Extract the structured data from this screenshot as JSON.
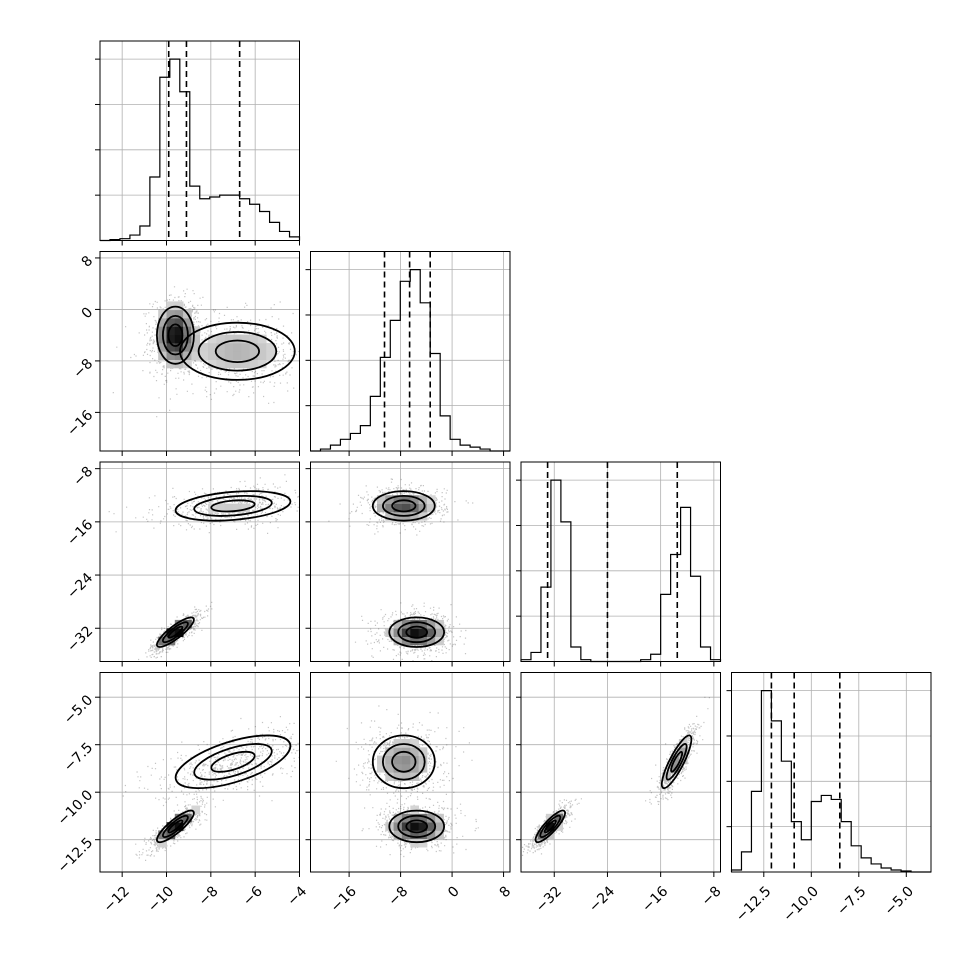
{
  "chart_data": {
    "type": "corner",
    "grid": true,
    "parameters": [
      {
        "range": [
          -13,
          -4
        ],
        "ticks": [
          -12,
          -10,
          -8,
          -6,
          -4
        ],
        "tick_labels": [
          "−12",
          "−10",
          "−8",
          "−6",
          "−4"
        ],
        "quantiles": [
          -9.9,
          -9.1,
          -6.7
        ]
      },
      {
        "range": [
          -22,
          9
        ],
        "ticks": [
          -16,
          -8,
          0,
          8
        ],
        "tick_labels": [
          "−16",
          "−8",
          "0",
          "8"
        ],
        "quantiles": [
          -10.5,
          -6.6,
          -3.4
        ]
      },
      {
        "range": [
          -37,
          -7
        ],
        "ticks": [
          -32,
          -24,
          -16,
          -8
        ],
        "tick_labels": [
          "−32",
          "−24",
          "−16",
          "−8"
        ],
        "quantiles": [
          -33.0,
          -24.0,
          -13.5
        ]
      },
      {
        "range": [
          -14.2,
          -3.7
        ],
        "ticks": [
          -12.5,
          -10.0,
          -7.5,
          -5.0
        ],
        "tick_labels": [
          "−12.5",
          "−10.0",
          "−7.5",
          "−5.0"
        ],
        "quantiles": [
          -12.1,
          -10.9,
          -8.5
        ]
      }
    ],
    "histograms": [
      {
        "bins": [
          -13.0,
          -12.55,
          -12.1,
          -11.65,
          -11.2,
          -10.75,
          -10.3,
          -9.85,
          -9.4,
          -8.95,
          -8.5,
          -8.05,
          -7.6,
          -7.15,
          -6.7,
          -6.25,
          -5.8,
          -5.35,
          -4.9,
          -4.45,
          -4.0
        ],
        "counts": [
          0,
          0.5,
          1,
          3,
          8,
          35,
          90,
          100,
          82,
          30,
          23,
          24,
          25,
          25,
          23,
          20,
          16,
          10,
          5,
          2
        ]
      },
      {
        "bins": [
          -22.0,
          -20.45,
          -18.9,
          -17.35,
          -15.8,
          -14.25,
          -12.7,
          -11.15,
          -9.6,
          -8.05,
          -6.5,
          -4.95,
          -3.4,
          -1.85,
          -0.3,
          1.25,
          2.8,
          4.35,
          5.9,
          7.45,
          9.0
        ],
        "counts": [
          0,
          1,
          3,
          6,
          9,
          13,
          28,
          48,
          67,
          87,
          93,
          76,
          50,
          18,
          6,
          3,
          2,
          1,
          0,
          0
        ]
      },
      {
        "bins": [
          -37.0,
          -35.5,
          -34.0,
          -32.5,
          -31.0,
          -29.5,
          -28.0,
          -26.5,
          -25.0,
          -23.5,
          -22.0,
          -20.5,
          -19.0,
          -17.5,
          -16.0,
          -14.5,
          -13.0,
          -11.5,
          -10.0,
          -8.5,
          -7.0
        ],
        "counts": [
          1,
          5,
          41,
          100,
          77,
          8,
          1,
          0,
          0,
          0,
          0,
          0,
          1,
          4,
          37,
          59,
          85,
          47,
          8,
          1
        ]
      },
      {
        "bins": [
          -14.2,
          -13.675,
          -13.15,
          -12.625,
          -12.1,
          -11.575,
          -11.05,
          -10.525,
          -10.0,
          -9.475,
          -8.95,
          -8.425,
          -7.9,
          -7.375,
          -6.85,
          -6.325,
          -5.8,
          -5.275,
          -4.75,
          -4.225,
          -3.7
        ],
        "counts": [
          1,
          10,
          40,
          90,
          75,
          55,
          25,
          16,
          35,
          38,
          36,
          25,
          13,
          7,
          4,
          2,
          1,
          0.5,
          0,
          0
        ]
      }
    ],
    "joint_modes": [
      {
        "pair": [
          0,
          1
        ],
        "modes": [
          {
            "mean": [
              -9.6,
              -4.0
            ],
            "sd": [
              0.45,
              2.4
            ],
            "rho": 0.0,
            "weight": 0.55
          },
          {
            "mean": [
              -6.8,
              -6.5
            ],
            "sd": [
              1.4,
              2.4
            ],
            "rho": 0.0,
            "weight": 0.45
          }
        ]
      },
      {
        "pair": [
          0,
          2
        ],
        "modes": [
          {
            "mean": [
              -9.6,
              -32.6
            ],
            "sd": [
              0.45,
              1.2
            ],
            "rho": 0.85,
            "weight": 0.55
          },
          {
            "mean": [
              -7.0,
              -13.6
            ],
            "sd": [
              1.4,
              1.2
            ],
            "rho": 0.3,
            "weight": 0.45
          }
        ]
      },
      {
        "pair": [
          1,
          2
        ],
        "modes": [
          {
            "mean": [
              -5.5,
              -32.6
            ],
            "sd": [
              2.3,
              1.2
            ],
            "rho": 0.0,
            "weight": 0.55
          },
          {
            "mean": [
              -7.5,
              -13.6
            ],
            "sd": [
              2.6,
              1.2
            ],
            "rho": 0.0,
            "weight": 0.45
          }
        ]
      },
      {
        "pair": [
          0,
          3
        ],
        "modes": [
          {
            "mean": [
              -9.6,
              -11.8
            ],
            "sd": [
              0.45,
              0.45
            ],
            "rho": 0.85,
            "weight": 0.55
          },
          {
            "mean": [
              -7.0,
              -8.4
            ],
            "sd": [
              1.4,
              0.75
            ],
            "rho": 0.6,
            "weight": 0.45
          }
        ]
      },
      {
        "pair": [
          1,
          3
        ],
        "modes": [
          {
            "mean": [
              -5.5,
              -11.8
            ],
            "sd": [
              2.3,
              0.45
            ],
            "rho": 0.0,
            "weight": 0.55
          },
          {
            "mean": [
              -7.5,
              -8.4
            ],
            "sd": [
              2.6,
              0.75
            ],
            "rho": 0.0,
            "weight": 0.45
          }
        ]
      },
      {
        "pair": [
          2,
          3
        ],
        "modes": [
          {
            "mean": [
              -32.6,
              -11.8
            ],
            "sd": [
              1.2,
              0.45
            ],
            "rho": 0.85,
            "weight": 0.55
          },
          {
            "mean": [
              -13.6,
              -8.4
            ],
            "sd": [
              1.2,
              0.75
            ],
            "rho": 0.85,
            "weight": 0.45
          }
        ]
      }
    ]
  }
}
